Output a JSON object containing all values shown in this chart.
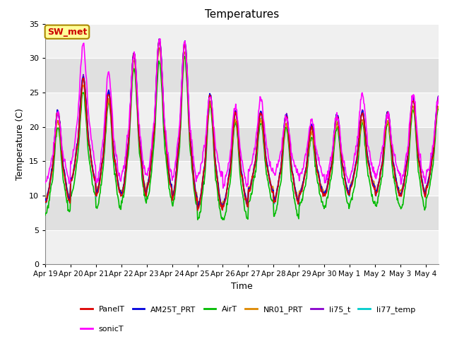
{
  "title": "Temperatures",
  "xlabel": "Time",
  "ylabel": "Temperature (C)",
  "ylim": [
    0,
    35
  ],
  "yticks": [
    0,
    5,
    10,
    15,
    20,
    25,
    30,
    35
  ],
  "background_color": "#ffffff",
  "plot_bg_color": "#e0e0e0",
  "series": {
    "PanelT": {
      "color": "#dd0000",
      "lw": 1.2
    },
    "AM25T_PRT": {
      "color": "#0000dd",
      "lw": 1.2
    },
    "AirT": {
      "color": "#00bb00",
      "lw": 1.2
    },
    "NR01_PRT": {
      "color": "#dd8800",
      "lw": 1.2
    },
    "li75_t": {
      "color": "#8800cc",
      "lw": 1.2
    },
    "li77_temp": {
      "color": "#00cccc",
      "lw": 1.2
    },
    "sonicT": {
      "color": "#ff00ff",
      "lw": 1.2
    }
  },
  "xtick_labels": [
    "Apr 19",
    "Apr 20",
    "Apr 21",
    "Apr 22",
    "Apr 23",
    "Apr 24",
    "Apr 25",
    "Apr 26",
    "Apr 27",
    "Apr 28",
    "Apr 29",
    "Apr 30",
    "May 1",
    "May 2",
    "May 3",
    "May 4"
  ],
  "annotation_text": "SW_met",
  "annotation_color": "#cc0000",
  "annotation_bg": "#ffff99",
  "annotation_border": "#aa8800",
  "figsize": [
    6.4,
    4.8
  ],
  "dpi": 100
}
